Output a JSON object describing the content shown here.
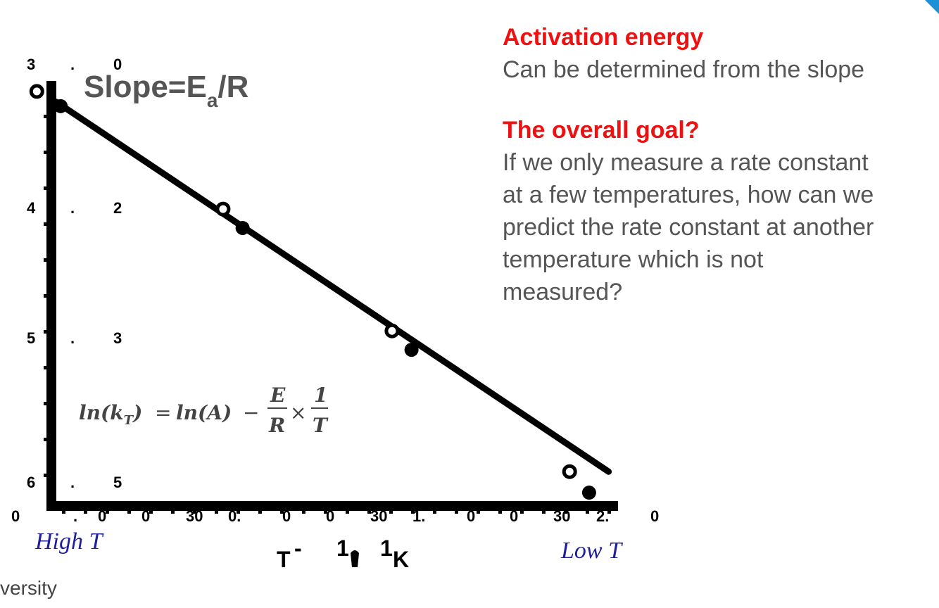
{
  "panel": {
    "heading1": "Activation energy",
    "body1": "Can be determined from the slope",
    "heading2": "The overall goal?",
    "body2_lines": [
      "If we only measure a rate constant",
      "at a few temperatures, how can we",
      "predict the rate constant at another",
      "temperature which is not",
      "measured?"
    ]
  },
  "footer_text": "versity",
  "colors": {
    "accent_red": "#ee1111",
    "body_gray": "#555555",
    "label_blue": "#1f1f9a",
    "corner_blue": "#1e90d6"
  },
  "chart_data": {
    "type": "scatter",
    "title": "",
    "slope_label": {
      "prefix": "Slope=E",
      "sub": "a",
      "suffix": "/R"
    },
    "equation": {
      "lhs": "ln(k",
      "lhs_sub": "T",
      "lhs_close": ")",
      "equals": "=",
      "rhs_term": "ln(A)",
      "minus": "−",
      "frac1_num": "E",
      "frac1_den": "R",
      "times": "×",
      "frac2_num": "1",
      "frac2_den": "T"
    },
    "xlabel_parts": [
      "T",
      "-",
      "1",
      "1",
      "K"
    ],
    "high_label": "High T",
    "low_label": "Low T",
    "y_tick_rows": [
      {
        "a": "3",
        "dot": ".",
        "b": "0"
      },
      {
        "a": "4",
        "dot": ".",
        "b": "2"
      },
      {
        "a": "5",
        "dot": ".",
        "b": "3"
      },
      {
        "a": "6",
        "dot": ".",
        "b": "5"
      }
    ],
    "x_tick_labels": [
      "0",
      ".",
      "0",
      "0",
      "30",
      "0.",
      "0",
      "0",
      "30",
      "1.",
      "0",
      "0",
      "30",
      "2.",
      "0"
    ],
    "xlim": [
      0,
      2.6
    ],
    "ylim": [
      0,
      10
    ],
    "line": {
      "x0": 0,
      "y0": 9.5,
      "x1": 2.55,
      "y1": 0.7
    },
    "points_open": [
      {
        "x": -0.09,
        "y": 9.75
      },
      {
        "x": 0.77,
        "y": 6.95
      },
      {
        "x": 1.55,
        "y": 4.05
      },
      {
        "x": 2.37,
        "y": 0.7
      }
    ],
    "points_filled": [
      {
        "x": 0.02,
        "y": 9.4
      },
      {
        "x": 0.86,
        "y": 6.5
      },
      {
        "x": 1.64,
        "y": 3.6
      },
      {
        "x": 2.46,
        "y": 0.2
      }
    ]
  }
}
